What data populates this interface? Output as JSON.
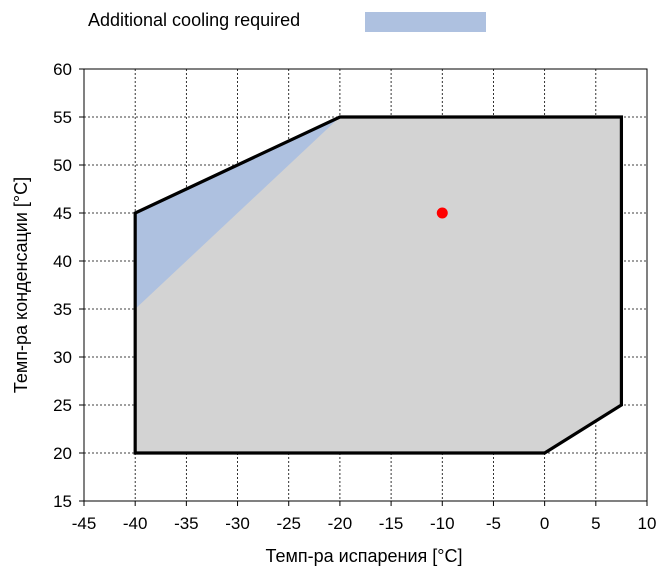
{
  "chart_data": {
    "type": "area",
    "title": "",
    "xlabel": "Темп-ра испарения [°C]",
    "ylabel": "Темп-ра конденсации [°C]",
    "xlim": [
      -45,
      10
    ],
    "ylim": [
      15,
      60
    ],
    "xticks": [
      "-45",
      "-40",
      "-35",
      "-30",
      "-25",
      "-20",
      "-15",
      "-10",
      "-5",
      "0",
      "5",
      "10"
    ],
    "yticks": [
      "15",
      "20",
      "25",
      "30",
      "35",
      "40",
      "45",
      "50",
      "55",
      "60"
    ],
    "grid": true,
    "legend": {
      "position": "top",
      "entries": [
        {
          "label": "Additional cooling required",
          "color": "#aec1e0"
        }
      ]
    },
    "envelope": {
      "fill": "#d3d3d3",
      "stroke": "#000000",
      "points": [
        {
          "x": -40,
          "y": 20
        },
        {
          "x": -40,
          "y": 45
        },
        {
          "x": -20,
          "y": 55
        },
        {
          "x": 7.5,
          "y": 55
        },
        {
          "x": 7.5,
          "y": 25
        },
        {
          "x": 0,
          "y": 20
        }
      ]
    },
    "cooling_region": {
      "color": "#aec1e0",
      "points": [
        {
          "x": -40,
          "y": 45
        },
        {
          "x": -20,
          "y": 55
        },
        {
          "x": -40,
          "y": 35
        }
      ]
    },
    "operating_point": {
      "x": -10,
      "y": 45,
      "color": "#ff0000"
    }
  }
}
